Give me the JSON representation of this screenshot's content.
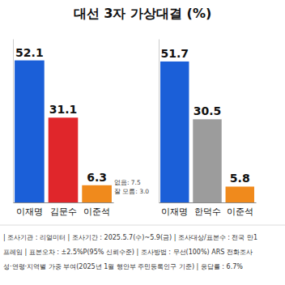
{
  "title": "대선 3자 가상대결 (%)",
  "chart_data": [
    {
      "type": "bar",
      "categories": [
        "이재명",
        "김문수",
        "이준석"
      ],
      "values": [
        52.1,
        31.1,
        6.3
      ],
      "colors": [
        "#1b5fd8",
        "#e0262b",
        "#f08a1c"
      ],
      "ylim": [
        0,
        60
      ],
      "yticks": [],
      "tick_labels": "x",
      "data_labels": true,
      "grid": false,
      "annotations": [
        "없음: 7.5",
        "잘 모름: 3.0"
      ]
    },
    {
      "type": "bar",
      "categories": [
        "이재명",
        "한덕수",
        "이준석"
      ],
      "values": [
        51.7,
        30.5,
        5.8
      ],
      "colors": [
        "#1b5fd8",
        "#9c9c9c",
        "#f08a1c"
      ],
      "ylim": [
        0,
        60
      ],
      "yticks": [],
      "tick_labels": "x",
      "data_labels": true,
      "grid": false
    }
  ],
  "footer": [
    "| 조사기관 : 리얼미터 | 조사기간 : 2025.5.7(수)~5.9(금) | 조사대상/표본수 : 전국 만1",
    "프레임 | 표본오차 : ±2.5%P(95% 신뢰수준) | 조사방법 : 무선(100%) ARS 전화조사",
    "성·연령·지역별 가중 부여(2025년 1월 행안부 주민등록인구 기준) | 응답률 : 6.7%"
  ]
}
